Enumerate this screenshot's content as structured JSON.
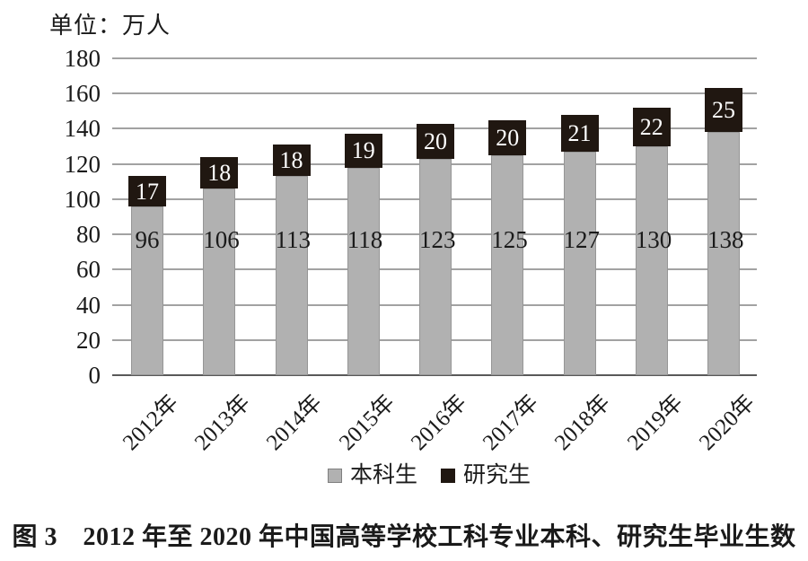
{
  "unit_label": "单位：万人",
  "caption": "图 3　2012 年至 2020 年中国高等学校工科专业本科、研究生毕业生数",
  "colors": {
    "undergrad_bar": "#b1b1b1",
    "grad_bar": "#201711",
    "gridline": "#a2a2a2",
    "axis_line": "#595959",
    "grad_value_text": "#ffffff",
    "text": "#1a1a1a"
  },
  "chart_data": {
    "type": "bar",
    "stacked": true,
    "title": "",
    "xlabel": "",
    "ylabel": "单位：万人",
    "ylim": [
      0,
      180
    ],
    "y_ticks": [
      0,
      20,
      40,
      60,
      80,
      100,
      120,
      140,
      160,
      180
    ],
    "grid": true,
    "legend_position": "bottom",
    "categories": [
      "2012年",
      "2013年",
      "2014年",
      "2015年",
      "2016年",
      "2017年",
      "2018年",
      "2019年",
      "2020年"
    ],
    "series": [
      {
        "name": "本科生",
        "values": [
          96,
          106,
          113,
          118,
          123,
          125,
          127,
          130,
          138
        ]
      },
      {
        "name": "研究生",
        "values": [
          17,
          18,
          18,
          19,
          20,
          20,
          21,
          22,
          25
        ]
      }
    ]
  }
}
